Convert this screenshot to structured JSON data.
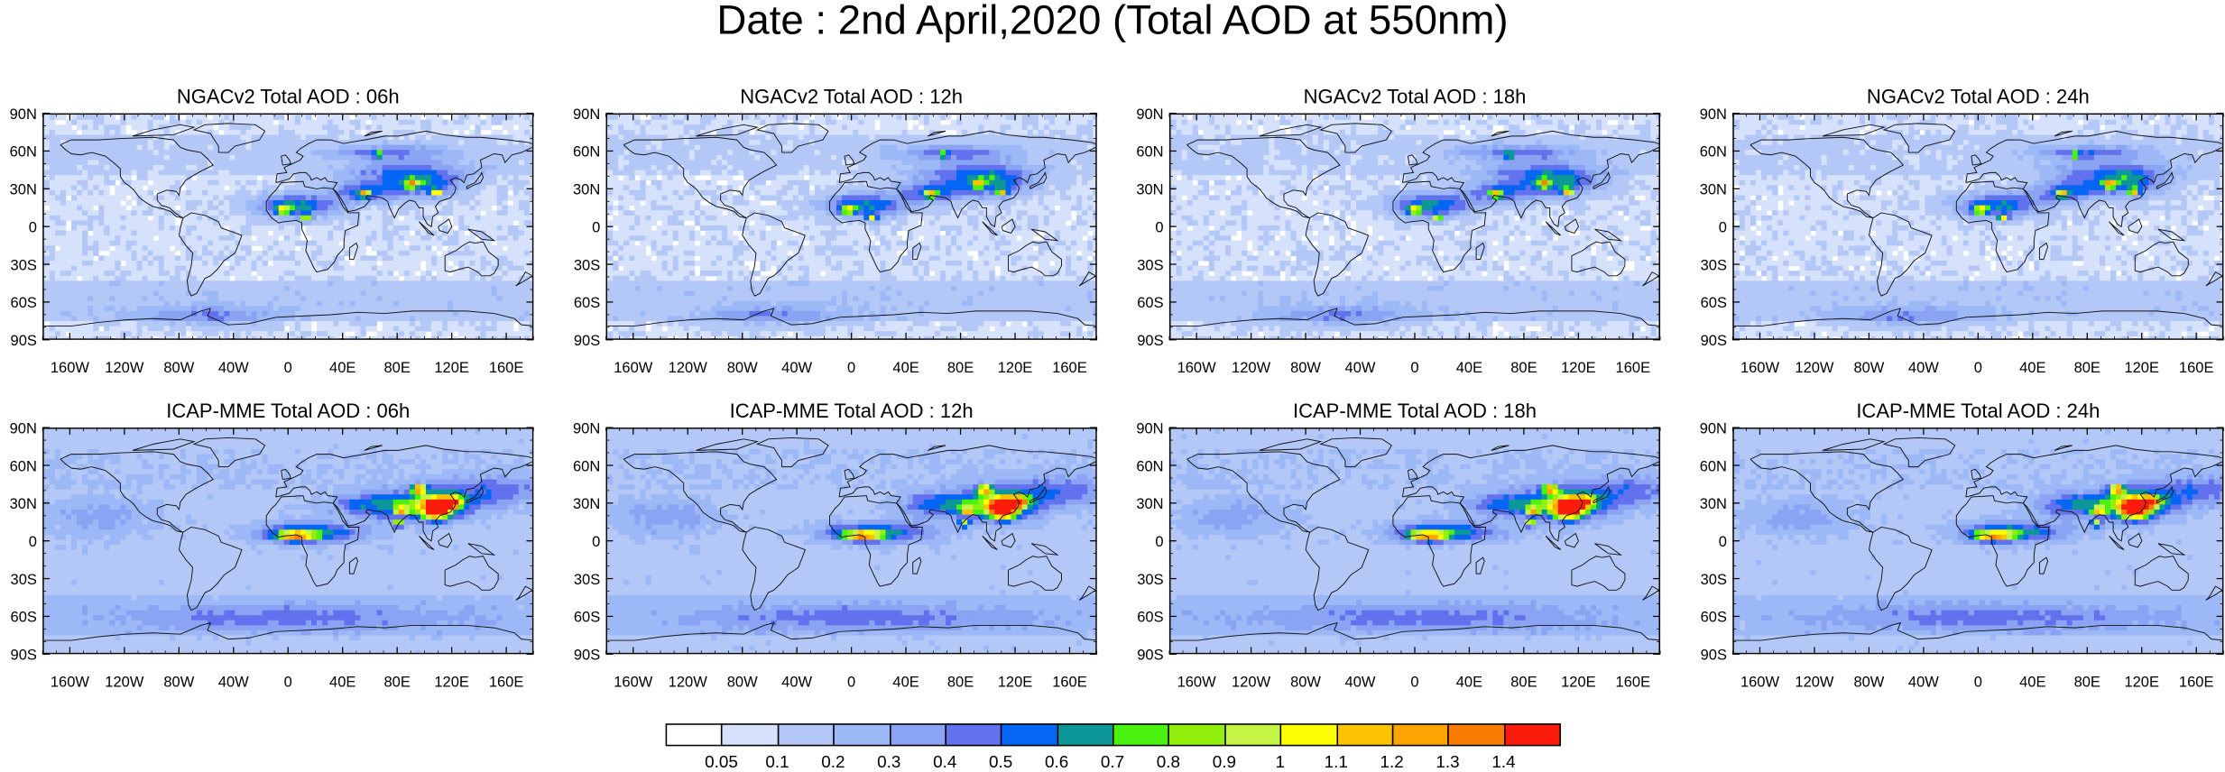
{
  "title": "Date : 2nd April,2020 (Total AOD at 550nm)",
  "lat_labels": [
    "90N",
    "60N",
    "30N",
    "0",
    "30S",
    "60S",
    "90S"
  ],
  "lon_labels": [
    "160W",
    "120W",
    "80W",
    "40W",
    "0",
    "40E",
    "80E",
    "120E",
    "160E"
  ],
  "lon_values": [
    -160,
    -120,
    -80,
    -40,
    0,
    40,
    80,
    120,
    160
  ],
  "lat_values": [
    90,
    60,
    30,
    0,
    -30,
    -60,
    -90
  ],
  "panels": [
    {
      "title": "NGACv2 Total AOD : 06h",
      "model": "NGACv2",
      "hour": "06h"
    },
    {
      "title": "NGACv2 Total AOD : 12h",
      "model": "NGACv2",
      "hour": "12h"
    },
    {
      "title": "NGACv2 Total AOD : 18h",
      "model": "NGACv2",
      "hour": "18h"
    },
    {
      "title": "NGACv2 Total AOD : 24h",
      "model": "NGACv2",
      "hour": "24h"
    },
    {
      "title": "ICAP-MME Total AOD : 06h",
      "model": "ICAP-MME",
      "hour": "06h"
    },
    {
      "title": "ICAP-MME Total AOD : 12h",
      "model": "ICAP-MME",
      "hour": "12h"
    },
    {
      "title": "ICAP-MME Total AOD : 18h",
      "model": "ICAP-MME",
      "hour": "18h"
    },
    {
      "title": "ICAP-MME Total AOD : 24h",
      "model": "ICAP-MME",
      "hour": "24h"
    }
  ],
  "colorbar": {
    "labels": [
      "0.05",
      "0.1",
      "0.2",
      "0.3",
      "0.4",
      "0.5",
      "0.6",
      "0.7",
      "0.8",
      "0.9",
      "1",
      "1.1",
      "1.2",
      "1.3",
      "1.4"
    ],
    "colors": [
      "#ffffff",
      "#d6e2fb",
      "#b4c8f8",
      "#9db8f7",
      "#8aa3f3",
      "#6272ee",
      "#0565f4",
      "#0c9798",
      "#49f20f",
      "#93f00d",
      "#c5f444",
      "#ffff00",
      "#fec300",
      "#fda400",
      "#fb7c02",
      "#fc1c0c"
    ]
  }
}
